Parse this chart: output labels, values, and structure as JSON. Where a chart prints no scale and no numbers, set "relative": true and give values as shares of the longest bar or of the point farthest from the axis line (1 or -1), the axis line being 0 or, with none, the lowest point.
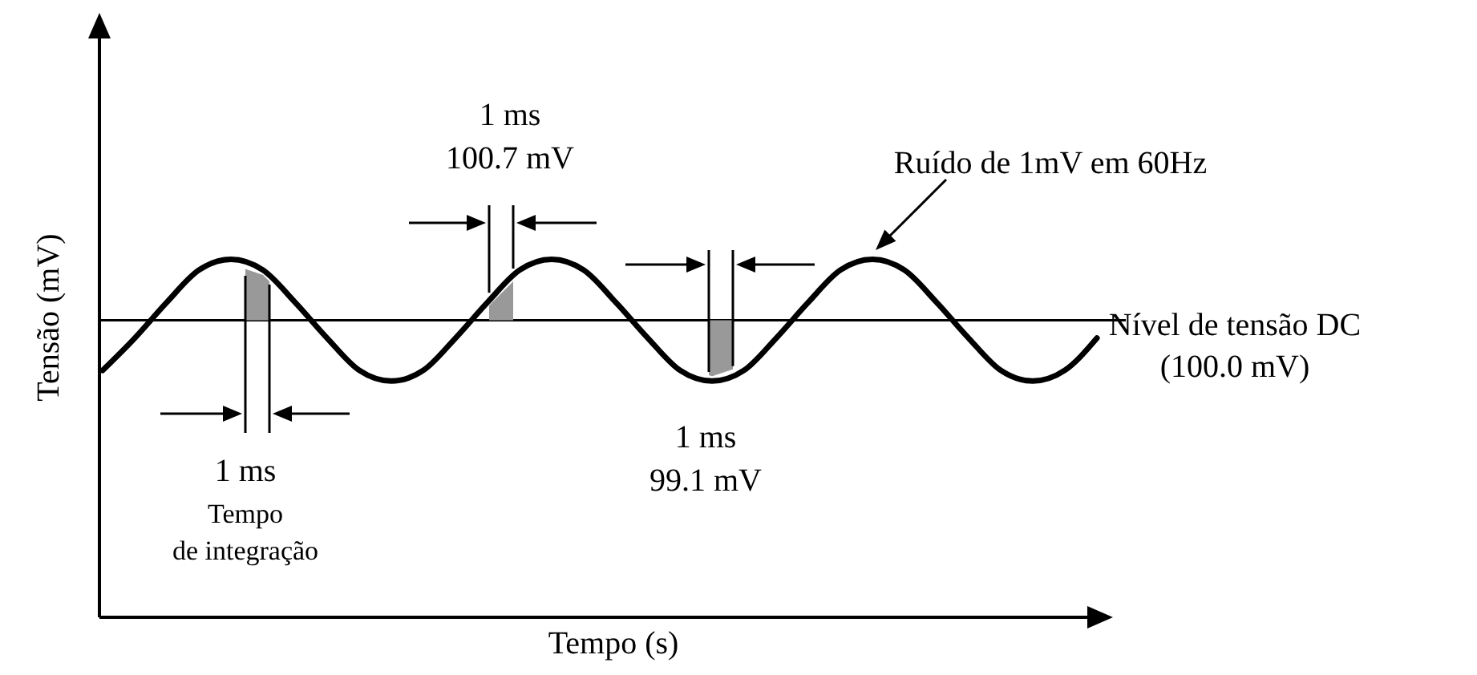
{
  "chart_data": {
    "type": "line",
    "relative": true,
    "xlabel": "Tempo (s)",
    "ylabel": "Tensão (mV)",
    "categories": [
      null,
      null,
      null,
      null,
      null,
      null,
      null,
      null,
      null,
      null,
      null,
      null,
      null,
      null,
      null,
      null,
      null,
      null,
      null,
      null,
      null,
      null,
      null,
      null,
      null,
      null,
      null,
      null,
      null,
      null,
      null,
      null
    ],
    "series": [
      {
        "color": "#000000",
        "values": [
          0.69,
          0.78,
          0.88,
          0.97,
          1.0,
          0.97,
          0.88,
          0.78,
          0.69,
          0.66,
          0.69,
          0.78,
          0.88,
          0.97,
          1.0,
          0.97,
          0.88,
          0.78,
          0.69,
          0.66,
          0.69,
          0.78,
          0.88,
          0.97,
          1.0,
          0.97,
          0.88,
          0.78,
          0.69,
          0.66,
          0.69,
          0.78
        ]
      }
    ],
    "ref_lines": [
      {
        "axis": "y",
        "value": 0.83,
        "label": "Nível de tensão DC\n(100.0 mV)",
        "color": "#000000"
      }
    ],
    "annotations": [
      "1 ms\n100.7 mV",
      "1 ms\n99.1 mV",
      "1 ms",
      "Tempo\nde integração",
      "Ruído de 1mV em 60Hz"
    ]
  }
}
